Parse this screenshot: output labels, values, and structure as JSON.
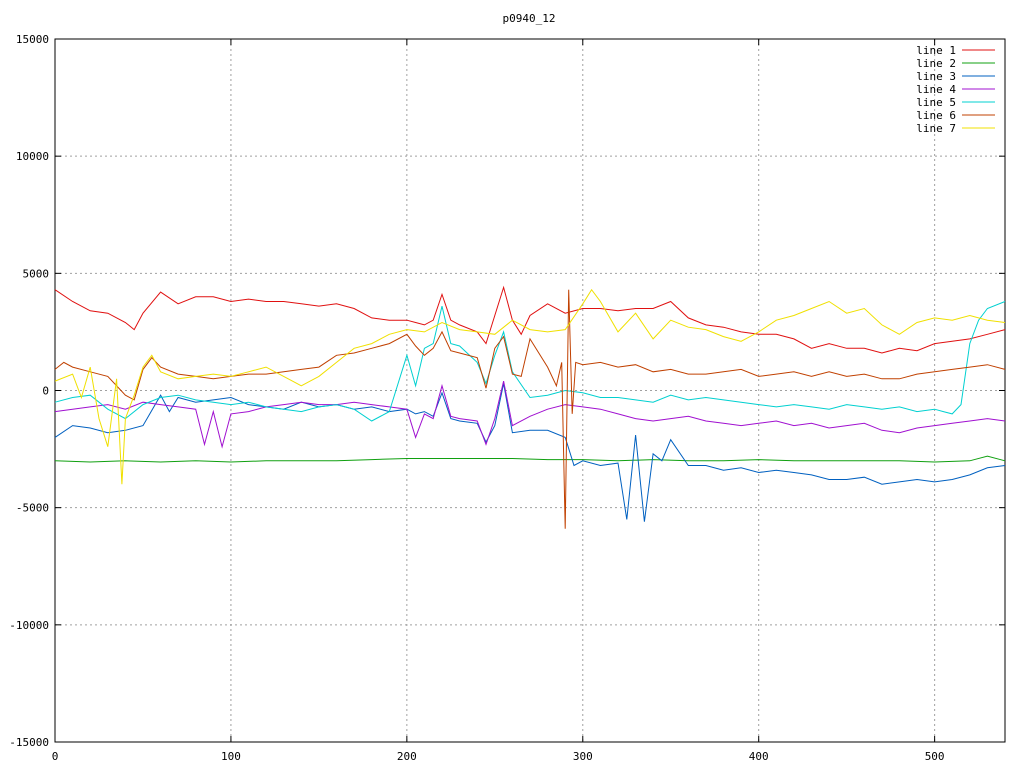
{
  "chart_data": {
    "type": "line",
    "title": "p0940_12",
    "xlabel": "",
    "ylabel": "",
    "xlim": [
      0,
      540
    ],
    "ylim": [
      -15000,
      15000
    ],
    "xticks": [
      0,
      100,
      200,
      300,
      400,
      500
    ],
    "xtick_labels": [
      "0",
      "100",
      "200",
      "300",
      "400",
      "500"
    ],
    "yticks": [
      -15000,
      -10000,
      -5000,
      0,
      5000,
      10000,
      15000
    ],
    "ytick_labels": [
      "-15000",
      "-10000",
      "-5000",
      "0",
      "5000",
      "10000",
      "15000"
    ],
    "grid": true,
    "legend_position": "top-right",
    "series": [
      {
        "name": "line 1",
        "color": "#e01010",
        "x": [
          0,
          10,
          20,
          30,
          40,
          45,
          50,
          60,
          70,
          80,
          90,
          100,
          110,
          120,
          130,
          140,
          150,
          160,
          170,
          180,
          190,
          200,
          205,
          210,
          215,
          220,
          225,
          230,
          240,
          245,
          250,
          255,
          260,
          265,
          270,
          280,
          290,
          300,
          310,
          320,
          330,
          340,
          350,
          360,
          370,
          380,
          390,
          400,
          410,
          420,
          430,
          440,
          450,
          460,
          470,
          480,
          490,
          500,
          510,
          520,
          530,
          540
        ],
        "values": [
          4300,
          3800,
          3400,
          3300,
          2900,
          2600,
          3300,
          4200,
          3700,
          4000,
          4000,
          3800,
          3900,
          3800,
          3800,
          3700,
          3600,
          3700,
          3500,
          3100,
          3000,
          3000,
          2900,
          2800,
          3000,
          4100,
          3000,
          2800,
          2500,
          2000,
          3200,
          4400,
          3000,
          2400,
          3200,
          3700,
          3300,
          3500,
          3500,
          3400,
          3500,
          3500,
          3800,
          3100,
          2800,
          2700,
          2500,
          2400,
          2400,
          2200,
          1800,
          2000,
          1800,
          1800,
          1600,
          1800,
          1700,
          2000,
          2100,
          2200,
          2400,
          2600
        ]
      },
      {
        "name": "line 2",
        "color": "#10a010",
        "x": [
          0,
          20,
          40,
          60,
          80,
          100,
          120,
          140,
          160,
          180,
          200,
          220,
          240,
          260,
          280,
          300,
          320,
          340,
          360,
          380,
          400,
          420,
          440,
          460,
          480,
          500,
          520,
          530,
          540
        ],
        "values": [
          -3000,
          -3050,
          -3000,
          -3050,
          -3000,
          -3050,
          -3000,
          -3000,
          -3000,
          -2950,
          -2900,
          -2900,
          -2900,
          -2900,
          -2950,
          -2950,
          -3000,
          -2950,
          -3000,
          -3000,
          -2950,
          -3000,
          -3000,
          -3000,
          -3000,
          -3050,
          -3000,
          -2800,
          -3000
        ]
      },
      {
        "name": "line 3",
        "color": "#0060c0",
        "x": [
          0,
          10,
          20,
          30,
          40,
          50,
          60,
          65,
          70,
          80,
          90,
          100,
          110,
          120,
          130,
          140,
          150,
          160,
          170,
          180,
          190,
          200,
          205,
          210,
          215,
          220,
          225,
          230,
          240,
          245,
          250,
          255,
          260,
          270,
          280,
          290,
          295,
          300,
          310,
          320,
          325,
          330,
          335,
          340,
          345,
          350,
          360,
          370,
          380,
          390,
          400,
          410,
          420,
          430,
          440,
          450,
          460,
          470,
          480,
          490,
          500,
          510,
          520,
          530,
          540
        ],
        "values": [
          -2000,
          -1500,
          -1600,
          -1800,
          -1700,
          -1500,
          -200,
          -900,
          -300,
          -500,
          -400,
          -300,
          -600,
          -700,
          -800,
          -500,
          -700,
          -600,
          -800,
          -700,
          -900,
          -800,
          -1000,
          -900,
          -1100,
          -100,
          -1200,
          -1300,
          -1400,
          -2200,
          -1500,
          300,
          -1800,
          -1700,
          -1700,
          -2000,
          -3200,
          -3000,
          -3200,
          -3100,
          -5500,
          -1900,
          -5600,
          -2700,
          -3000,
          -2100,
          -3200,
          -3200,
          -3400,
          -3300,
          -3500,
          -3400,
          -3500,
          -3600,
          -3800,
          -3800,
          -3700,
          -4000,
          -3900,
          -3800,
          -3900,
          -3800,
          -3600,
          -3300,
          -3200
        ]
      },
      {
        "name": "line 4",
        "color": "#a010d0",
        "x": [
          0,
          10,
          20,
          30,
          40,
          50,
          60,
          70,
          80,
          85,
          90,
          95,
          100,
          110,
          120,
          130,
          140,
          150,
          160,
          170,
          180,
          190,
          200,
          205,
          210,
          215,
          220,
          225,
          230,
          240,
          245,
          250,
          255,
          260,
          270,
          280,
          290,
          300,
          310,
          320,
          330,
          340,
          350,
          360,
          370,
          380,
          390,
          400,
          410,
          420,
          430,
          440,
          450,
          460,
          470,
          480,
          490,
          500,
          510,
          520,
          530,
          540
        ],
        "values": [
          -900,
          -800,
          -700,
          -600,
          -800,
          -500,
          -600,
          -700,
          -800,
          -2300,
          -900,
          -2400,
          -1000,
          -900,
          -700,
          -600,
          -500,
          -600,
          -600,
          -500,
          -600,
          -700,
          -800,
          -2000,
          -1000,
          -1200,
          200,
          -1100,
          -1200,
          -1300,
          -2300,
          -1200,
          400,
          -1500,
          -1100,
          -800,
          -600,
          -700,
          -800,
          -1000,
          -1200,
          -1300,
          -1200,
          -1100,
          -1300,
          -1400,
          -1500,
          -1400,
          -1300,
          -1500,
          -1400,
          -1600,
          -1500,
          -1400,
          -1700,
          -1800,
          -1600,
          -1500,
          -1400,
          -1300,
          -1200,
          -1300
        ]
      },
      {
        "name": "line 5",
        "color": "#00d0d0",
        "x": [
          0,
          10,
          20,
          30,
          40,
          50,
          60,
          70,
          80,
          90,
          100,
          110,
          120,
          130,
          140,
          150,
          160,
          170,
          180,
          190,
          200,
          205,
          210,
          215,
          220,
          225,
          230,
          240,
          245,
          250,
          255,
          260,
          270,
          280,
          290,
          300,
          310,
          320,
          330,
          340,
          350,
          360,
          370,
          380,
          390,
          400,
          410,
          420,
          430,
          440,
          450,
          460,
          470,
          480,
          490,
          500,
          505,
          510,
          515,
          520,
          525,
          530,
          540
        ],
        "values": [
          -500,
          -300,
          -200,
          -800,
          -1200,
          -600,
          -300,
          -200,
          -400,
          -500,
          -600,
          -500,
          -700,
          -800,
          -900,
          -700,
          -600,
          -800,
          -1300,
          -900,
          1500,
          200,
          1800,
          2000,
          3600,
          2000,
          1900,
          1200,
          300,
          1500,
          2500,
          800,
          -300,
          -200,
          0,
          -100,
          -300,
          -300,
          -400,
          -500,
          -200,
          -400,
          -300,
          -400,
          -500,
          -600,
          -700,
          -600,
          -700,
          -800,
          -600,
          -700,
          -800,
          -700,
          -900,
          -800,
          -900,
          -1000,
          -600,
          2000,
          3000,
          3500,
          3800
        ]
      },
      {
        "name": "line 6",
        "color": "#c04000",
        "x": [
          0,
          5,
          10,
          20,
          30,
          40,
          45,
          50,
          55,
          60,
          70,
          80,
          90,
          100,
          110,
          120,
          130,
          140,
          150,
          160,
          170,
          180,
          190,
          200,
          205,
          210,
          215,
          220,
          225,
          230,
          240,
          245,
          250,
          255,
          260,
          265,
          270,
          275,
          280,
          285,
          288,
          290,
          292,
          294,
          296,
          300,
          310,
          320,
          330,
          340,
          350,
          360,
          370,
          380,
          390,
          400,
          410,
          420,
          430,
          440,
          450,
          460,
          470,
          480,
          490,
          500,
          510,
          520,
          530,
          540
        ],
        "values": [
          900,
          1200,
          1000,
          800,
          600,
          -200,
          -400,
          900,
          1400,
          1000,
          700,
          600,
          500,
          600,
          700,
          700,
          800,
          900,
          1000,
          1500,
          1600,
          1800,
          2000,
          2400,
          1900,
          1500,
          1800,
          2500,
          1700,
          1600,
          1400,
          100,
          1800,
          2300,
          700,
          600,
          2200,
          1600,
          1000,
          200,
          1200,
          -5900,
          4300,
          -1000,
          1200,
          1100,
          1200,
          1000,
          1100,
          800,
          900,
          700,
          700,
          800,
          900,
          600,
          700,
          800,
          600,
          800,
          600,
          700,
          500,
          500,
          700,
          800,
          900,
          1000,
          1100,
          900
        ]
      },
      {
        "name": "line 7",
        "color": "#f0e000",
        "x": [
          0,
          10,
          15,
          20,
          25,
          30,
          35,
          38,
          40,
          45,
          50,
          55,
          60,
          70,
          80,
          90,
          100,
          110,
          120,
          130,
          140,
          150,
          160,
          170,
          180,
          190,
          200,
          210,
          220,
          230,
          240,
          250,
          260,
          270,
          280,
          290,
          300,
          305,
          310,
          320,
          330,
          340,
          350,
          360,
          370,
          380,
          390,
          400,
          410,
          420,
          430,
          440,
          450,
          460,
          470,
          480,
          490,
          500,
          510,
          520,
          530,
          540
        ],
        "values": [
          400,
          700,
          -300,
          1000,
          -1200,
          -2400,
          500,
          -4000,
          -1200,
          -200,
          1000,
          1500,
          800,
          500,
          600,
          700,
          600,
          800,
          1000,
          600,
          200,
          600,
          1200,
          1800,
          2000,
          2400,
          2600,
          2500,
          2900,
          2600,
          2500,
          2400,
          3000,
          2600,
          2500,
          2600,
          3700,
          4300,
          3800,
          2500,
          3300,
          2200,
          3000,
          2700,
          2600,
          2300,
          2100,
          2500,
          3000,
          3200,
          3500,
          3800,
          3300,
          3500,
          2800,
          2400,
          2900,
          3100,
          3000,
          3200,
          3000,
          2900
        ]
      }
    ]
  }
}
